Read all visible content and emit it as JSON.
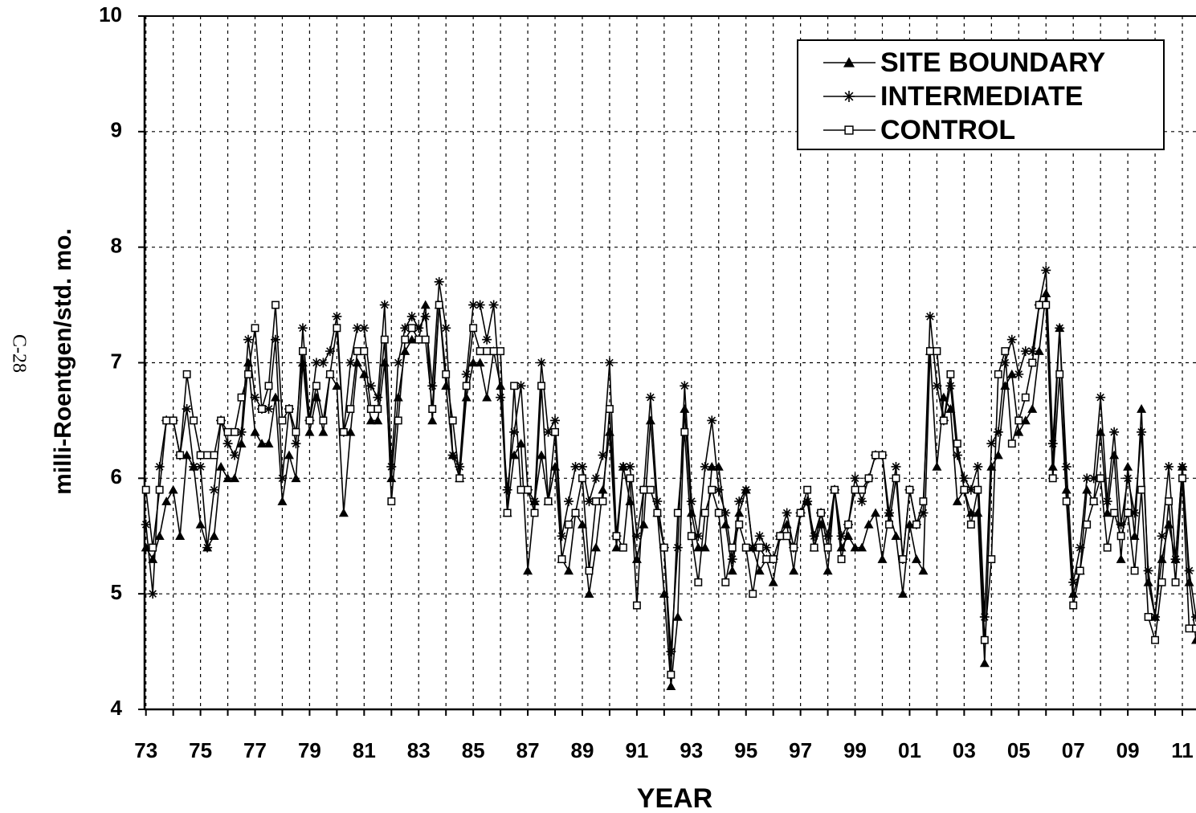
{
  "chart_data": {
    "type": "line",
    "side_note": "C-28",
    "ylabel": "milli-Roentgen/std. mo.",
    "xlabel": "YEAR",
    "xlim": [
      1972.95,
      2011.5
    ],
    "ylim": [
      4,
      10
    ],
    "yticks": [
      4,
      5,
      6,
      7,
      8,
      9,
      10
    ],
    "xticks": [
      {
        "value": 1973,
        "label": "73"
      },
      {
        "value": 1975,
        "label": "75"
      },
      {
        "value": 1977,
        "label": "77"
      },
      {
        "value": 1979,
        "label": "79"
      },
      {
        "value": 1981,
        "label": "81"
      },
      {
        "value": 1983,
        "label": "83"
      },
      {
        "value": 1985,
        "label": "85"
      },
      {
        "value": 1987,
        "label": "87"
      },
      {
        "value": 1989,
        "label": "89"
      },
      {
        "value": 1991,
        "label": "91"
      },
      {
        "value": 1993,
        "label": "93"
      },
      {
        "value": 1995,
        "label": "95"
      },
      {
        "value": 1997,
        "label": "97"
      },
      {
        "value": 1999,
        "label": "99"
      },
      {
        "value": 2001,
        "label": "01"
      },
      {
        "value": 2003,
        "label": "03"
      },
      {
        "value": 2005,
        "label": "05"
      },
      {
        "value": 2007,
        "label": "07"
      },
      {
        "value": 2009,
        "label": "09"
      },
      {
        "value": 2011,
        "label": "11"
      }
    ],
    "minor_xticks": [
      1974,
      1976,
      1978,
      1980,
      1982,
      1984,
      1986,
      1988,
      1990,
      1992,
      1994,
      1996,
      1998,
      2000,
      2002,
      2004,
      2006,
      2008,
      2010
    ],
    "grid": true,
    "legend": "upper right",
    "x": [
      1973,
      1973.25,
      1973.5,
      1973.75,
      1974,
      1974.25,
      1974.5,
      1974.75,
      1975,
      1975.25,
      1975.5,
      1975.75,
      1976,
      1976.25,
      1976.5,
      1976.75,
      1977,
      1977.25,
      1977.5,
      1977.75,
      1978,
      1978.25,
      1978.5,
      1978.75,
      1979,
      1979.25,
      1979.5,
      1979.75,
      1980,
      1980.25,
      1980.5,
      1980.75,
      1981,
      1981.25,
      1981.5,
      1981.75,
      1982,
      1982.25,
      1982.5,
      1982.75,
      1983,
      1983.25,
      1983.5,
      1983.75,
      1984,
      1984.25,
      1984.5,
      1984.75,
      1985,
      1985.25,
      1985.5,
      1985.75,
      1986,
      1986.25,
      1986.5,
      1986.75,
      1987,
      1987.25,
      1987.5,
      1987.75,
      1988,
      1988.25,
      1988.5,
      1988.75,
      1989,
      1989.25,
      1989.5,
      1989.75,
      1990,
      1990.25,
      1990.5,
      1990.75,
      1991,
      1991.25,
      1991.5,
      1991.75,
      1992,
      1992.25,
      1992.5,
      1992.75,
      1993,
      1993.25,
      1993.5,
      1993.75,
      1994,
      1994.25,
      1994.5,
      1994.75,
      1995,
      1995.25,
      1995.5,
      1995.75,
      1996,
      1996.25,
      1996.5,
      1996.75,
      1997,
      1997.25,
      1997.5,
      1997.75,
      1998,
      1998.25,
      1998.5,
      1998.75,
      1999,
      1999.25,
      1999.5,
      1999.75,
      2000,
      2000.25,
      2000.5,
      2000.75,
      2001,
      2001.25,
      2001.5,
      2001.75,
      2002,
      2002.25,
      2002.5,
      2002.75,
      2003,
      2003.25,
      2003.5,
      2003.75,
      2004,
      2004.25,
      2004.5,
      2004.75,
      2005,
      2005.25,
      2005.5,
      2005.75,
      2006,
      2006.25,
      2006.5,
      2006.75,
      2007,
      2007.25,
      2007.5,
      2007.75,
      2008,
      2008.25,
      2008.5,
      2008.75,
      2009,
      2009.25,
      2009.5,
      2009.75,
      2010,
      2010.25,
      2010.5,
      2010.75,
      2011,
      2011.25,
      2011.5
    ],
    "series": [
      {
        "name": "SITE BOUNDARY",
        "color": "#000000",
        "marker": "triangle",
        "values": [
          5.4,
          5.3,
          5.5,
          5.8,
          5.9,
          5.5,
          6.2,
          6.1,
          5.6,
          5.4,
          5.5,
          6.1,
          6.0,
          6.0,
          6.3,
          7.0,
          6.4,
          6.3,
          6.3,
          6.7,
          5.8,
          6.2,
          6.0,
          7.0,
          6.4,
          6.7,
          6.4,
          6.9,
          6.8,
          5.7,
          6.4,
          7.0,
          6.9,
          6.5,
          6.5,
          7.0,
          6.0,
          6.7,
          7.1,
          7.2,
          7.2,
          7.5,
          6.5,
          7.5,
          6.8,
          6.2,
          6.0,
          6.7,
          7.0,
          7.0,
          6.7,
          7.1,
          6.8,
          5.7,
          6.2,
          6.3,
          5.2,
          5.8,
          6.2,
          5.8,
          6.1,
          5.3,
          5.2,
          5.7,
          5.6,
          5.0,
          5.4,
          5.9,
          6.4,
          5.4,
          6.1,
          5.8,
          5.3,
          5.6,
          6.5,
          5.7,
          5.0,
          4.2,
          4.8,
          6.6,
          5.7,
          5.4,
          5.4,
          6.1,
          6.1,
          5.6,
          5.2,
          5.7,
          5.9,
          5.4,
          5.2,
          5.3,
          5.1,
          5.5,
          5.6,
          5.2,
          5.7,
          5.8,
          5.4,
          5.6,
          5.2,
          5.9,
          5.4,
          5.5,
          5.4,
          5.4,
          5.6,
          5.7,
          5.3,
          5.7,
          5.5,
          5.0,
          5.6,
          5.3,
          5.2,
          7.1,
          6.1,
          6.7,
          6.6,
          5.8,
          5.9,
          5.7,
          5.7,
          4.4,
          6.1,
          6.2,
          6.8,
          6.9,
          6.4,
          6.5,
          6.6,
          7.1,
          7.6,
          6.1,
          7.3,
          5.9,
          5.0,
          5.2,
          5.9,
          5.8,
          6.4,
          5.7,
          6.2,
          5.3,
          6.1,
          5.5,
          6.6,
          5.1,
          4.8,
          5.3,
          5.6,
          5.3,
          6.1,
          5.1,
          4.6
        ]
      },
      {
        "name": "INTERMEDIATE",
        "color": "#000000",
        "marker": "asterisk",
        "values": [
          5.6,
          5.0,
          6.1,
          6.5,
          6.5,
          6.2,
          6.6,
          6.1,
          6.1,
          5.4,
          5.9,
          6.5,
          6.3,
          6.2,
          6.4,
          7.2,
          6.7,
          6.6,
          6.6,
          7.2,
          6.0,
          6.6,
          6.3,
          7.3,
          6.5,
          7.0,
          7.0,
          7.1,
          7.4,
          6.4,
          7.0,
          7.3,
          7.3,
          6.8,
          6.7,
          7.5,
          6.1,
          7.0,
          7.3,
          7.4,
          7.3,
          7.4,
          6.8,
          7.7,
          7.3,
          6.2,
          6.1,
          6.9,
          7.5,
          7.5,
          7.2,
          7.5,
          6.7,
          5.9,
          6.4,
          6.8,
          5.9,
          5.8,
          7.0,
          6.4,
          6.5,
          5.5,
          5.8,
          6.1,
          6.1,
          5.8,
          6.0,
          6.2,
          7.0,
          5.5,
          6.1,
          6.1,
          5.5,
          5.9,
          6.7,
          5.8,
          5.4,
          4.5,
          5.4,
          6.8,
          5.8,
          5.5,
          6.1,
          6.5,
          5.9,
          5.7,
          5.3,
          5.8,
          5.9,
          5.4,
          5.5,
          5.4,
          5.3,
          5.5,
          5.7,
          5.4,
          5.7,
          5.8,
          5.5,
          5.7,
          5.5,
          5.9,
          5.5,
          5.6,
          6.0,
          5.8,
          6.0,
          6.2,
          6.2,
          5.7,
          6.1,
          5.3,
          5.9,
          5.6,
          5.7,
          7.4,
          6.8,
          6.5,
          6.8,
          6.2,
          6.0,
          5.9,
          6.1,
          4.8,
          6.3,
          6.4,
          7.0,
          7.2,
          6.9,
          7.1,
          7.1,
          7.5,
          7.8,
          6.3,
          7.3,
          6.1,
          5.1,
          5.4,
          6.0,
          6.0,
          6.7,
          5.8,
          6.4,
          5.6,
          6.0,
          5.7,
          6.4,
          5.2,
          4.8,
          5.5,
          6.1,
          5.3,
          6.1,
          5.2,
          4.8
        ]
      },
      {
        "name": "CONTROL",
        "color": "#000000",
        "marker": "square",
        "values": [
          5.9,
          5.4,
          5.9,
          6.5,
          6.5,
          6.2,
          6.9,
          6.5,
          6.2,
          6.2,
          6.2,
          6.5,
          6.4,
          6.4,
          6.7,
          6.9,
          7.3,
          6.6,
          6.8,
          7.5,
          6.5,
          6.6,
          6.4,
          7.1,
          6.5,
          6.8,
          6.5,
          6.9,
          7.3,
          6.4,
          6.6,
          7.1,
          7.1,
          6.6,
          6.6,
          7.2,
          5.8,
          6.5,
          7.2,
          7.3,
          7.2,
          7.2,
          6.6,
          7.5,
          6.9,
          6.5,
          6.0,
          6.8,
          7.3,
          7.1,
          7.1,
          7.1,
          7.1,
          5.7,
          6.8,
          5.9,
          5.9,
          5.7,
          6.8,
          5.8,
          6.4,
          5.3,
          5.6,
          5.7,
          6.0,
          5.2,
          5.8,
          5.8,
          6.6,
          5.5,
          5.4,
          6.0,
          4.9,
          5.9,
          5.9,
          5.7,
          5.4,
          4.3,
          5.7,
          6.4,
          5.5,
          5.1,
          5.7,
          5.9,
          5.7,
          5.1,
          5.4,
          5.6,
          5.4,
          5.0,
          5.4,
          5.3,
          5.3,
          5.5,
          5.5,
          5.4,
          5.7,
          5.9,
          5.4,
          5.7,
          5.4,
          5.9,
          5.3,
          5.6,
          5.9,
          5.9,
          6.0,
          6.2,
          6.2,
          5.6,
          6.0,
          5.3,
          5.9,
          5.6,
          5.8,
          7.1,
          7.1,
          6.5,
          6.9,
          6.3,
          5.9,
          5.6,
          5.9,
          4.6,
          5.3,
          6.9,
          7.1,
          6.3,
          6.5,
          6.7,
          7.0,
          7.5,
          7.5,
          6.0,
          6.9,
          5.8,
          4.9,
          5.2,
          5.6,
          5.8,
          6.0,
          5.4,
          5.7,
          5.5,
          5.7,
          5.2,
          5.9,
          4.8,
          4.6,
          5.1,
          5.8,
          5.1,
          6.0,
          4.7,
          4.7
        ]
      }
    ]
  }
}
